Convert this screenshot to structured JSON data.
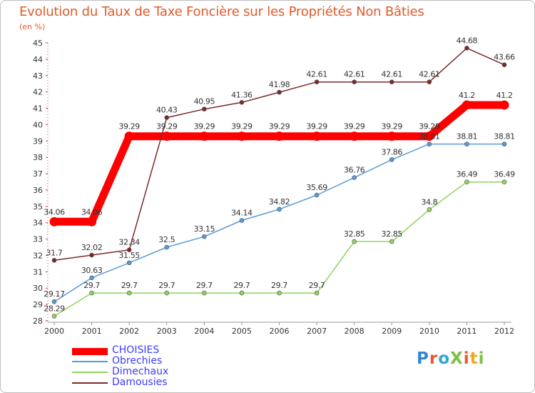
{
  "chart_data": {
    "type": "line",
    "title": "Evolution du Taux de Taxe Foncière sur les Propriétés Non Bâties",
    "ylabel": "(en %)",
    "xlabel": "",
    "categories": [
      "2000",
      "2001",
      "2002",
      "2003",
      "2004",
      "2005",
      "2006",
      "2007",
      "2008",
      "2009",
      "2010",
      "2011",
      "2012"
    ],
    "ylim": [
      28,
      45
    ],
    "yticks": [
      "28",
      "29",
      "30",
      "31",
      "32",
      "33",
      "34",
      "35",
      "36",
      "37",
      "38",
      "39",
      "40",
      "41",
      "42",
      "43",
      "44",
      "45"
    ],
    "series": [
      {
        "name": "CHOISIES",
        "color": "#ff0000",
        "values": [
          34.06,
          34.06,
          39.29,
          39.29,
          39.29,
          39.29,
          39.29,
          39.29,
          39.29,
          39.29,
          39.29,
          41.2,
          41.2
        ],
        "labels": [
          "34.06",
          "34.06",
          "39.29",
          "39.29",
          "39.29",
          "39.29",
          "39.29",
          "39.29",
          "39.29",
          "39.29",
          "39.29",
          "41.2",
          "41.2"
        ]
      },
      {
        "name": "Obrechies",
        "color": "#5b9bd5",
        "values": [
          29.17,
          30.63,
          31.55,
          32.5,
          33.15,
          34.14,
          34.82,
          35.69,
          36.76,
          37.86,
          38.81,
          38.81,
          38.81
        ],
        "labels": [
          "29.17",
          "30.63",
          "31.55",
          "32.5",
          "33.15",
          "34.14",
          "34.82",
          "35.69",
          "36.76",
          "37.86",
          "38.81",
          "38.81",
          "38.81"
        ]
      },
      {
        "name": "Dimechaux",
        "color": "#8fd35f",
        "values": [
          28.29,
          29.7,
          29.7,
          29.7,
          29.7,
          29.7,
          29.7,
          29.7,
          32.85,
          32.85,
          34.8,
          36.49,
          36.49
        ],
        "labels": [
          "28.29",
          "29.7",
          "29.7",
          "29.7",
          "29.7",
          "29.7",
          "29.7",
          "29.7",
          "32.85",
          "32.85",
          "34.8",
          "36.49",
          "36.49"
        ]
      },
      {
        "name": "Damousies",
        "color": "#7a2a2a",
        "values": [
          31.7,
          32.02,
          32.34,
          40.43,
          40.95,
          41.36,
          41.98,
          42.61,
          42.61,
          42.61,
          42.61,
          44.68,
          43.66
        ],
        "labels": [
          "31.7",
          "32.02",
          "32.34",
          "40.43",
          "40.95",
          "41.36",
          "41.98",
          "42.61",
          "42.61",
          "42.61",
          "42.61",
          "44.68",
          "43.66"
        ]
      }
    ],
    "grid": false,
    "legend": "bottom-left"
  },
  "logo": {
    "text": "ProXiti",
    "colors": [
      "#2f86d8",
      "#e65a2c",
      "#2ea8d2",
      "#7ac143",
      "#e65a2c",
      "#f2a81d",
      "#7ac143"
    ]
  }
}
